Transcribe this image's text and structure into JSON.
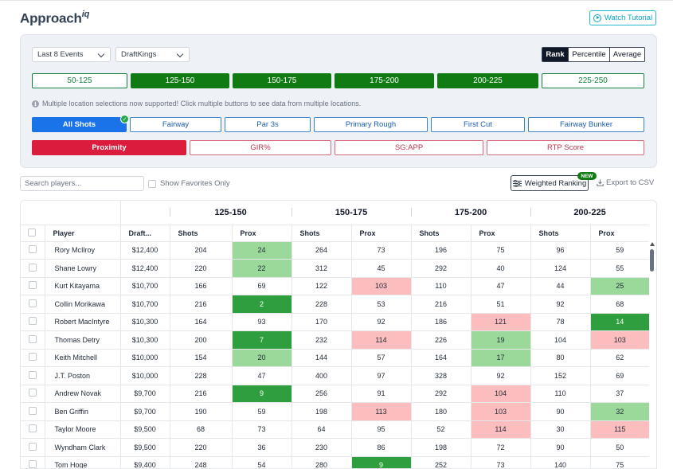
{
  "brand": {
    "name": "Approach",
    "suffix": "iq"
  },
  "header": {
    "tutorial_label": "Watch Tutorial"
  },
  "filters": {
    "events_select": "Last 8 Events",
    "site_select": "DraftKings",
    "modes": [
      "Rank",
      "Percentile",
      "Average"
    ],
    "active_mode": "Rank"
  },
  "ranges": [
    {
      "label": "50-125",
      "active": false
    },
    {
      "label": "125-150",
      "active": true
    },
    {
      "label": "150-175",
      "active": true
    },
    {
      "label": "175-200",
      "active": true
    },
    {
      "label": "200-225",
      "active": true
    },
    {
      "label": "225-250",
      "active": false
    }
  ],
  "info_text": "Multiple location selections now supported! Click multiple buttons to see data from multiple locations.",
  "lies": [
    {
      "label": "All Shots",
      "active": true
    },
    {
      "label": "Fairway",
      "active": false
    },
    {
      "label": "Par 3s",
      "active": false
    },
    {
      "label": "Primary Rough",
      "active": false
    },
    {
      "label": "First Cut",
      "active": false
    },
    {
      "label": "Fairway Bunker",
      "active": false
    }
  ],
  "metrics": [
    {
      "label": "Proximity",
      "active": true
    },
    {
      "label": "GIR%",
      "active": false
    },
    {
      "label": "SG:APP",
      "active": false
    },
    {
      "label": "RTP Score",
      "active": false
    }
  ],
  "toolbar": {
    "search_placeholder": "Search players...",
    "favorites_label": "Show Favorites Only",
    "weighted_label": "Weighted Ranking",
    "new_badge": "NEW",
    "export_label": "Export to CSV"
  },
  "table": {
    "groups": [
      "125-150",
      "150-175",
      "175-200",
      "200-225"
    ],
    "columns": [
      "Player",
      "Draft...",
      "Shots",
      "Prox",
      "Shots",
      "Prox",
      "Shots",
      "Prox",
      "Shots",
      "Prox"
    ],
    "highlight_colors": {
      "lg": "#9bd99b",
      "dg": "#2e9e3e",
      "pk": "#fbbdbd"
    },
    "rows": [
      {
        "player": "Rory McIlroy",
        "salary": "$12,400",
        "cells": [
          [
            "204",
            ""
          ],
          [
            "24",
            "lg"
          ],
          [
            "264",
            ""
          ],
          [
            "73",
            ""
          ],
          [
            "196",
            ""
          ],
          [
            "75",
            ""
          ],
          [
            "96",
            ""
          ],
          [
            "59",
            ""
          ]
        ]
      },
      {
        "player": "Shane Lowry",
        "salary": "$12,400",
        "cells": [
          [
            "220",
            ""
          ],
          [
            "22",
            "lg"
          ],
          [
            "312",
            ""
          ],
          [
            "45",
            ""
          ],
          [
            "292",
            ""
          ],
          [
            "40",
            ""
          ],
          [
            "124",
            ""
          ],
          [
            "55",
            ""
          ]
        ]
      },
      {
        "player": "Kurt Kitayama",
        "salary": "$10,700",
        "cells": [
          [
            "166",
            ""
          ],
          [
            "69",
            ""
          ],
          [
            "122",
            ""
          ],
          [
            "103",
            "pk"
          ],
          [
            "110",
            ""
          ],
          [
            "47",
            ""
          ],
          [
            "44",
            ""
          ],
          [
            "25",
            "lg"
          ]
        ]
      },
      {
        "player": "Collin Morikawa",
        "salary": "$10,700",
        "cells": [
          [
            "216",
            ""
          ],
          [
            "2",
            "dg"
          ],
          [
            "228",
            ""
          ],
          [
            "53",
            ""
          ],
          [
            "216",
            ""
          ],
          [
            "51",
            ""
          ],
          [
            "92",
            ""
          ],
          [
            "68",
            ""
          ]
        ]
      },
      {
        "player": "Robert MacIntyre",
        "salary": "$10,300",
        "cells": [
          [
            "164",
            ""
          ],
          [
            "93",
            ""
          ],
          [
            "170",
            ""
          ],
          [
            "92",
            ""
          ],
          [
            "186",
            ""
          ],
          [
            "121",
            "pk"
          ],
          [
            "78",
            ""
          ],
          [
            "14",
            "dg"
          ]
        ]
      },
      {
        "player": "Thomas Detry",
        "salary": "$10,300",
        "cells": [
          [
            "200",
            ""
          ],
          [
            "7",
            "dg"
          ],
          [
            "232",
            ""
          ],
          [
            "114",
            "pk"
          ],
          [
            "226",
            ""
          ],
          [
            "19",
            "lg"
          ],
          [
            "104",
            ""
          ],
          [
            "103",
            "pk"
          ]
        ]
      },
      {
        "player": "Keith Mitchell",
        "salary": "$10,000",
        "cells": [
          [
            "154",
            ""
          ],
          [
            "20",
            "lg"
          ],
          [
            "144",
            ""
          ],
          [
            "57",
            ""
          ],
          [
            "164",
            ""
          ],
          [
            "17",
            "lg"
          ],
          [
            "80",
            ""
          ],
          [
            "62",
            ""
          ]
        ]
      },
      {
        "player": "J.T. Poston",
        "salary": "$10,000",
        "cells": [
          [
            "228",
            ""
          ],
          [
            "47",
            ""
          ],
          [
            "400",
            ""
          ],
          [
            "97",
            ""
          ],
          [
            "328",
            ""
          ],
          [
            "92",
            ""
          ],
          [
            "152",
            ""
          ],
          [
            "69",
            ""
          ]
        ]
      },
      {
        "player": "Andrew Novak",
        "salary": "$9,700",
        "cells": [
          [
            "216",
            ""
          ],
          [
            "9",
            "dg"
          ],
          [
            "256",
            ""
          ],
          [
            "91",
            ""
          ],
          [
            "292",
            ""
          ],
          [
            "104",
            "pk"
          ],
          [
            "110",
            ""
          ],
          [
            "37",
            ""
          ]
        ]
      },
      {
        "player": "Ben Griffin",
        "salary": "$9,700",
        "cells": [
          [
            "190",
            ""
          ],
          [
            "59",
            ""
          ],
          [
            "198",
            ""
          ],
          [
            "113",
            "pk"
          ],
          [
            "180",
            ""
          ],
          [
            "103",
            "pk"
          ],
          [
            "90",
            ""
          ],
          [
            "32",
            "lg"
          ]
        ]
      },
      {
        "player": "Taylor Moore",
        "salary": "$9,500",
        "cells": [
          [
            "68",
            ""
          ],
          [
            "73",
            ""
          ],
          [
            "64",
            ""
          ],
          [
            "95",
            ""
          ],
          [
            "52",
            ""
          ],
          [
            "114",
            "pk"
          ],
          [
            "30",
            ""
          ],
          [
            "115",
            "pk"
          ]
        ]
      },
      {
        "player": "Wyndham Clark",
        "salary": "$9,500",
        "cells": [
          [
            "220",
            ""
          ],
          [
            "36",
            ""
          ],
          [
            "230",
            ""
          ],
          [
            "86",
            ""
          ],
          [
            "198",
            ""
          ],
          [
            "72",
            ""
          ],
          [
            "90",
            ""
          ],
          [
            "50",
            ""
          ]
        ]
      },
      {
        "player": "Tom Hoge",
        "salary": "$9,400",
        "cells": [
          [
            "248",
            ""
          ],
          [
            "54",
            ""
          ],
          [
            "280",
            ""
          ],
          [
            "9",
            "dg"
          ],
          [
            "252",
            ""
          ],
          [
            "73",
            ""
          ],
          [
            "140",
            ""
          ],
          [
            "75",
            ""
          ]
        ]
      }
    ]
  }
}
